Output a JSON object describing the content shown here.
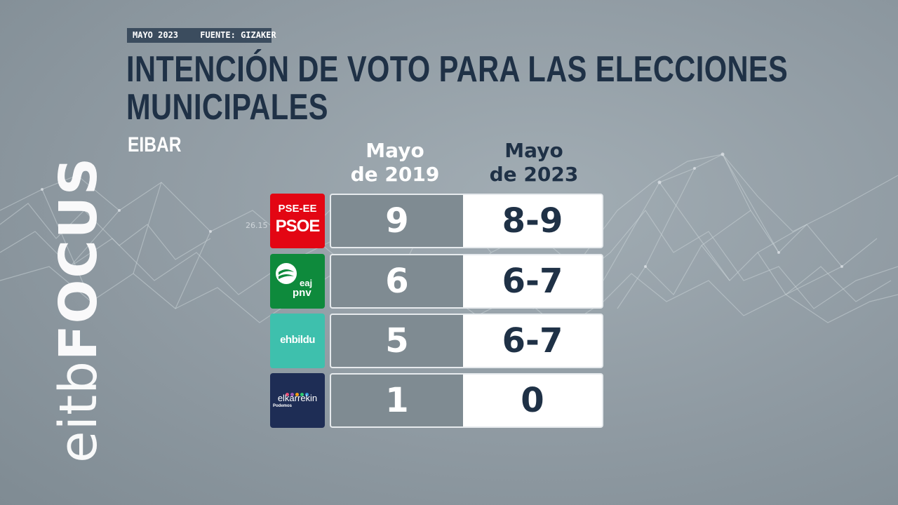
{
  "header": {
    "date": "MAYO 2023",
    "source": "FUENTE: GIZAKER",
    "title_line1": "INTENCIÓN DE VOTO PARA LAS ELECCIONES",
    "title_line2": "MUNICIPALES",
    "subtitle": "EIBAR"
  },
  "brand": {
    "part1": "eitb",
    "part2": "FOCUS"
  },
  "background_label": "26.15",
  "columns": [
    "Mayo\nde 2019",
    "Mayo\nde 2023"
  ],
  "chart_data": {
    "type": "table",
    "title": "INTENCIÓN DE VOTO PARA LAS ELECCIONES MUNICIPALES",
    "subtitle": "EIBAR",
    "columns": [
      "Mayo de 2019",
      "Mayo de 2023"
    ],
    "rows": [
      {
        "party": "PSE-EE PSOE",
        "values": [
          "9",
          "8-9"
        ]
      },
      {
        "party": "EAJ PNV",
        "values": [
          "6",
          "6-7"
        ]
      },
      {
        "party": "EH Bildu",
        "values": [
          "5",
          "6-7"
        ]
      },
      {
        "party": "Elkarrekin Podemos",
        "values": [
          "1",
          "0"
        ]
      }
    ]
  },
  "logos": {
    "psoe": {
      "line1": "PSE-EE",
      "line2": "PSOE",
      "color": "#e30613"
    },
    "pnv": {
      "line1": "eaj",
      "line2": "pnv",
      "color": "#0e8a3c"
    },
    "bildu": {
      "line1": "ehbildu",
      "color": "#3ec0ad"
    },
    "elk": {
      "line1": "elkarrekin",
      "line2": "Podemos",
      "color": "#1e2d55"
    }
  },
  "colors": {
    "title": "#1f3146",
    "old_cell": "#7f8b92",
    "new_cell": "#ffffff"
  }
}
